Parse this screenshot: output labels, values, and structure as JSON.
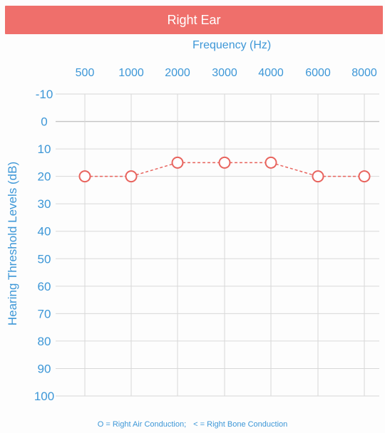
{
  "header": {
    "title": "Right Ear"
  },
  "legend": {
    "air": "O = Right Air Conduction;",
    "bone": "< = Right Bone Conduction"
  },
  "colors": {
    "header_bg": "#ef6f6b",
    "axis_text": "#3d97d7",
    "marker": "#e8645e",
    "grid": "#d8d8d8"
  },
  "chart_data": {
    "type": "line",
    "title": "",
    "xlabel": "Frequency (Hz)",
    "ylabel": "Hearing Threshold Levels (dB)",
    "x_categories": [
      "500",
      "1000",
      "2000",
      "3000",
      "4000",
      "6000",
      "8000"
    ],
    "y_ticks": [
      "-10",
      "0",
      "10",
      "20",
      "30",
      "40",
      "50",
      "60",
      "70",
      "80",
      "90",
      "100"
    ],
    "ylim": [
      -10,
      100
    ],
    "y_inverted": true,
    "grid": true,
    "legend_position": "bottom",
    "series": [
      {
        "name": "Right Air Conduction",
        "marker": "circle",
        "line_style": "dashed",
        "values": [
          20,
          20,
          15,
          15,
          15,
          20,
          20
        ]
      }
    ]
  }
}
